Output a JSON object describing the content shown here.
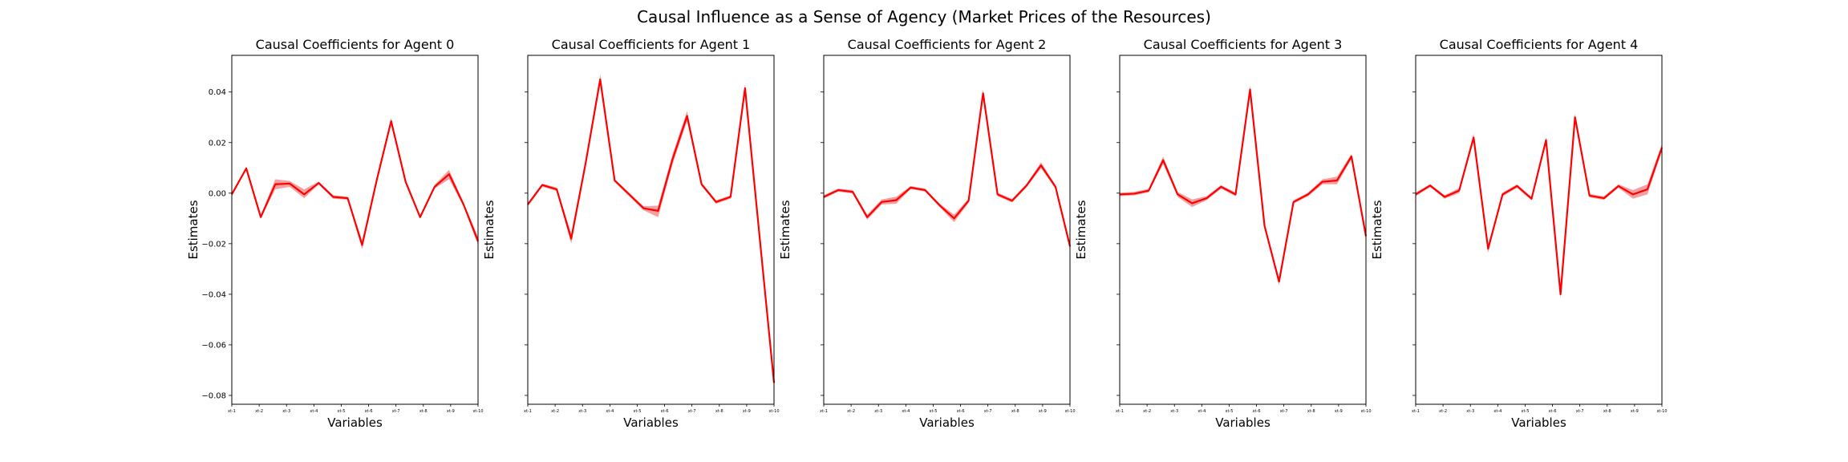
{
  "suptitle": "Causal Influence as a Sense of Agency (Market Prices of the Resources)",
  "colors": {
    "line": "#ff0000",
    "band": "#f08080",
    "axis": "#000000"
  },
  "chart_data": [
    {
      "type": "line",
      "title": "Causal Coefficients for Agent 0",
      "xlabel": "Variables",
      "ylabel": "Estimates",
      "xticklabels": [
        "xt-1",
        "xt-2",
        "xt-3",
        "xt-4",
        "xt-5",
        "xt-6",
        "xt-7",
        "xt-8",
        "xt-9",
        "xt-10"
      ],
      "ylim": [
        -0.0835,
        0.0545
      ],
      "yticks": [
        0.04,
        0.02,
        0.0,
        -0.02,
        -0.04,
        -0.06,
        -0.08
      ],
      "yticklabels": [
        "0.04",
        "0.02",
        "0.00",
        "−0.02",
        "−0.04",
        "−0.06",
        "−0.08"
      ],
      "grid": false,
      "series": [
        {
          "values": [
            -0.0005,
            0.0098,
            -0.0095,
            0.0035,
            0.0038,
            -0.0005,
            0.004,
            -0.0015,
            -0.002,
            -0.0205,
            0.005,
            0.0285,
            0.0045,
            -0.0095,
            0.0025,
            0.0075,
            -0.0045,
            -0.019
          ],
          "band_lower": [
            -0.0012,
            0.0094,
            -0.01,
            0.0015,
            0.0025,
            -0.002,
            0.0035,
            -0.0022,
            -0.0026,
            -0.0222,
            0.0044,
            0.027,
            0.004,
            -0.01,
            0.0018,
            0.0055,
            -0.0052,
            -0.0205
          ],
          "band_upper": [
            0.0002,
            0.0104,
            -0.0088,
            0.0055,
            0.0048,
            0.0015,
            0.0046,
            -0.0008,
            -0.0014,
            -0.0188,
            0.0056,
            0.0298,
            0.005,
            -0.0088,
            0.0033,
            0.0092,
            -0.0038,
            -0.0172
          ]
        }
      ]
    },
    {
      "type": "line",
      "title": "Causal Coefficients for Agent 1",
      "xlabel": "Variables",
      "ylabel": "Estimates",
      "xticklabels": [
        "xt-1",
        "xt-2",
        "xt-3",
        "xt-4",
        "xt-5",
        "xt-6",
        "xt-7",
        "xt-8",
        "xt-9",
        "xt-10"
      ],
      "ylim": [
        -0.0835,
        0.0545
      ],
      "yticks": [
        0.04,
        0.02,
        0.0,
        -0.02,
        -0.04,
        -0.06,
        -0.08
      ],
      "grid": false,
      "series": [
        {
          "values": [
            -0.0045,
            0.0032,
            0.0015,
            -0.018,
            0.012,
            0.045,
            0.005,
            -0.0005,
            -0.006,
            -0.007,
            0.0135,
            0.0305,
            0.0035,
            -0.0035,
            -0.0015,
            0.0415,
            -0.017,
            -0.075
          ],
          "band_lower": [
            -0.0052,
            0.0026,
            0.0008,
            -0.02,
            0.0105,
            0.043,
            0.0044,
            -0.0012,
            -0.0068,
            -0.0095,
            0.0115,
            0.0285,
            0.0028,
            -0.0042,
            -0.0022,
            0.04,
            -0.019,
            -0.0775
          ],
          "band_upper": [
            -0.0038,
            0.0038,
            0.0022,
            -0.016,
            0.0135,
            0.047,
            0.0056,
            0.0002,
            -0.0052,
            -0.005,
            0.0155,
            0.0325,
            0.0042,
            -0.0028,
            -0.0008,
            0.043,
            -0.015,
            -0.0725
          ]
        }
      ]
    },
    {
      "type": "line",
      "title": "Causal Coefficients for Agent 2",
      "xlabel": "Variables",
      "ylabel": "Estimates",
      "xticklabels": [
        "xt-1",
        "xt-2",
        "xt-3",
        "xt-4",
        "xt-5",
        "xt-6",
        "xt-7",
        "xt-8",
        "xt-9",
        "xt-10"
      ],
      "ylim": [
        -0.0835,
        0.0545
      ],
      "yticks": [
        0.04,
        0.02,
        0.0,
        -0.02,
        -0.04,
        -0.06,
        -0.08
      ],
      "grid": false,
      "series": [
        {
          "values": [
            -0.0015,
            0.0012,
            0.0005,
            -0.0095,
            -0.0035,
            -0.0028,
            0.0022,
            0.0012,
            -0.0048,
            -0.01,
            -0.003,
            0.0395,
            -0.0005,
            -0.003,
            0.003,
            0.011,
            0.0025,
            -0.021
          ],
          "band_lower": [
            -0.0022,
            0.0006,
            -0.0002,
            -0.0105,
            -0.0045,
            -0.0042,
            0.0016,
            0.0006,
            -0.0055,
            -0.0115,
            -0.0038,
            0.038,
            -0.0012,
            -0.0037,
            0.0023,
            0.0098,
            0.0018,
            -0.0225
          ],
          "band_upper": [
            -0.0008,
            0.0018,
            0.0012,
            -0.0085,
            -0.0025,
            -0.0014,
            0.0028,
            0.0018,
            -0.0041,
            -0.0085,
            -0.0022,
            0.041,
            0.0002,
            -0.0023,
            0.0037,
            0.0122,
            0.0032,
            -0.0195
          ]
        }
      ]
    },
    {
      "type": "line",
      "title": "Causal Coefficients for Agent 3",
      "xlabel": "Variables",
      "ylabel": "Estimates",
      "xticklabels": [
        "xt-1",
        "xt-2",
        "xt-3",
        "xt-4",
        "xt-5",
        "xt-6",
        "xt-7",
        "xt-8",
        "xt-9",
        "xt-10"
      ],
      "ylim": [
        -0.0835,
        0.0545
      ],
      "yticks": [
        0.04,
        0.02,
        0.0,
        -0.02,
        -0.04,
        -0.06,
        -0.08
      ],
      "grid": false,
      "series": [
        {
          "values": [
            -0.0005,
            -0.0002,
            0.001,
            0.013,
            -0.0005,
            -0.004,
            -0.002,
            0.0025,
            -0.0005,
            0.041,
            -0.013,
            -0.035,
            -0.0035,
            -0.0005,
            0.0045,
            0.005,
            0.0145,
            -0.017
          ],
          "band_lower": [
            -0.0012,
            -0.0009,
            0.0003,
            0.0115,
            -0.0015,
            -0.0055,
            -0.0028,
            0.0018,
            -0.0012,
            0.0395,
            -0.0138,
            -0.0365,
            -0.0042,
            -0.0012,
            0.0035,
            0.0035,
            0.0135,
            -0.0185
          ],
          "band_upper": [
            0.0002,
            0.0005,
            0.0017,
            0.0145,
            0.0005,
            -0.0025,
            -0.0012,
            0.0032,
            0.0002,
            0.0425,
            -0.0122,
            -0.0335,
            -0.0028,
            0.0002,
            0.0055,
            0.0065,
            0.0155,
            -0.0155
          ]
        }
      ]
    },
    {
      "type": "line",
      "title": "Causal Coefficients for Agent 4",
      "xlabel": "Variables",
      "ylabel": "Estimates",
      "xticklabels": [
        "xt-1",
        "xt-2",
        "xt-3",
        "xt-4",
        "xt-5",
        "xt-6",
        "xt-7",
        "xt-8",
        "xt-9",
        "xt-10"
      ],
      "ylim": [
        -0.0835,
        0.0545
      ],
      "yticks": [
        0.04,
        0.02,
        0.0,
        -0.02,
        -0.04,
        -0.06,
        -0.08
      ],
      "grid": false,
      "series": [
        {
          "values": [
            -0.0005,
            0.003,
            -0.0015,
            0.001,
            0.022,
            -0.022,
            -0.0005,
            0.0028,
            -0.0022,
            0.021,
            -0.04,
            0.03,
            -0.001,
            -0.002,
            0.0028,
            -0.0005,
            0.0015,
            0.018
          ],
          "band_lower": [
            -0.0012,
            0.0024,
            -0.0022,
            0.0,
            0.0205,
            -0.0235,
            -0.0012,
            0.0021,
            -0.0029,
            0.0198,
            -0.0415,
            0.0285,
            -0.0017,
            -0.0027,
            0.0021,
            -0.0022,
            -0.0005,
            0.0165
          ],
          "band_upper": [
            0.0002,
            0.0036,
            -0.0008,
            0.002,
            0.0235,
            -0.0205,
            0.0002,
            0.0035,
            -0.0015,
            0.0222,
            -0.0385,
            0.0315,
            -0.0003,
            -0.0013,
            0.0035,
            0.0012,
            0.0035,
            0.0195
          ]
        }
      ]
    }
  ]
}
